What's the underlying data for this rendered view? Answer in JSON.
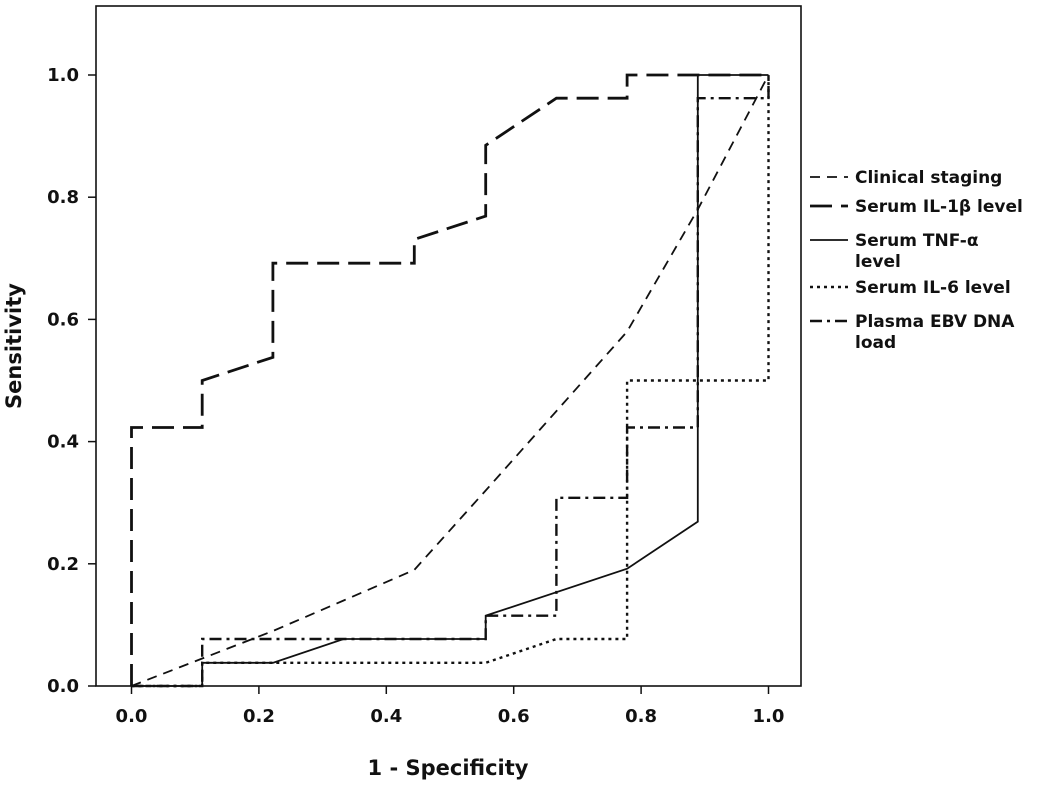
{
  "chart_data": {
    "type": "line",
    "title": "",
    "xlabel": "1 - Specificity",
    "ylabel": "Sensitivity",
    "xlim": [
      -0.05,
      1.05
    ],
    "ylim": [
      0.0,
      1.1
    ],
    "x_ticks": [
      "0.0",
      "0.2",
      "0.4",
      "0.6",
      "0.8",
      "1.0"
    ],
    "y_ticks": [
      "0.0",
      "0.2",
      "0.4",
      "0.6",
      "0.8",
      "1.0"
    ],
    "grid": false,
    "legend_position": "right",
    "series": [
      {
        "name": "Clinical staging",
        "style": "dash",
        "points": [
          [
            0.0,
            0.0
          ],
          [
            0.111,
            0.045
          ],
          [
            0.222,
            0.09
          ],
          [
            0.333,
            0.14
          ],
          [
            0.444,
            0.19
          ],
          [
            0.556,
            0.32
          ],
          [
            0.667,
            0.45
          ],
          [
            0.778,
            0.58
          ],
          [
            0.889,
            0.78
          ],
          [
            1.0,
            1.0
          ]
        ]
      },
      {
        "name": "Serum IL-1β level",
        "style": "longdash",
        "points": [
          [
            0.0,
            0.0
          ],
          [
            0.0,
            0.423
          ],
          [
            0.111,
            0.423
          ],
          [
            0.111,
            0.5
          ],
          [
            0.222,
            0.538
          ],
          [
            0.222,
            0.692
          ],
          [
            0.444,
            0.692
          ],
          [
            0.444,
            0.731
          ],
          [
            0.556,
            0.769
          ],
          [
            0.556,
            0.885
          ],
          [
            0.667,
            0.962
          ],
          [
            0.778,
            0.962
          ],
          [
            0.778,
            1.0
          ],
          [
            1.0,
            1.0
          ]
        ]
      },
      {
        "name": "Serum TNF-α level",
        "style": "solid",
        "points": [
          [
            0.0,
            0.0
          ],
          [
            0.111,
            0.0
          ],
          [
            0.111,
            0.038
          ],
          [
            0.222,
            0.038
          ],
          [
            0.333,
            0.077
          ],
          [
            0.556,
            0.077
          ],
          [
            0.556,
            0.115
          ],
          [
            0.778,
            0.192
          ],
          [
            0.889,
            0.269
          ],
          [
            0.889,
            1.0
          ],
          [
            1.0,
            1.0
          ]
        ]
      },
      {
        "name": "Serum IL-6 level",
        "style": "dot",
        "points": [
          [
            0.0,
            0.0
          ],
          [
            0.111,
            0.0
          ],
          [
            0.111,
            0.038
          ],
          [
            0.556,
            0.038
          ],
          [
            0.667,
            0.077
          ],
          [
            0.778,
            0.077
          ],
          [
            0.778,
            0.5
          ],
          [
            1.0,
            0.5
          ],
          [
            1.0,
            1.0
          ]
        ]
      },
      {
        "name": "Plasma EBV DNA load",
        "style": "dashdot",
        "points": [
          [
            0.0,
            0.0
          ],
          [
            0.111,
            0.0
          ],
          [
            0.111,
            0.077
          ],
          [
            0.556,
            0.077
          ],
          [
            0.556,
            0.115
          ],
          [
            0.667,
            0.115
          ],
          [
            0.667,
            0.308
          ],
          [
            0.778,
            0.308
          ],
          [
            0.778,
            0.423
          ],
          [
            0.889,
            0.423
          ],
          [
            0.889,
            0.962
          ],
          [
            1.0,
            0.962
          ],
          [
            1.0,
            1.0
          ]
        ]
      }
    ],
    "legend": [
      {
        "lines": [
          "Clinical staging"
        ],
        "style": "dash"
      },
      {
        "lines": [
          "Serum IL-1β level"
        ],
        "style": "longdash"
      },
      {
        "lines": [
          "Serum TNF-α",
          "level"
        ],
        "style": "solid"
      },
      {
        "lines": [
          "Serum IL-6 level"
        ],
        "style": "dot"
      },
      {
        "lines": [
          "Plasma EBV DNA",
          "load"
        ],
        "style": "dashdot"
      }
    ],
    "line_color": "#111111"
  }
}
